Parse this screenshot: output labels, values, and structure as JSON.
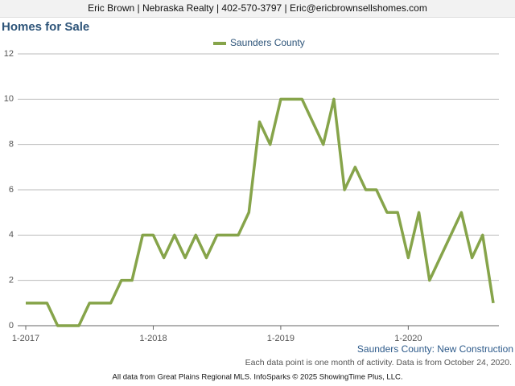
{
  "header": {
    "contact": "Eric Brown | Nebraska Realty | 402-570-3797 | Eric@ericbrownsellshomes.com"
  },
  "chart_data": {
    "type": "line",
    "title": "Homes for Sale",
    "categories": [
      "1-2017",
      null,
      null,
      null,
      null,
      null,
      null,
      null,
      null,
      null,
      null,
      null,
      "1-2018",
      null,
      null,
      null,
      null,
      null,
      null,
      null,
      null,
      null,
      null,
      null,
      "1-2019",
      null,
      null,
      null,
      null,
      null,
      null,
      null,
      null,
      null,
      null,
      null,
      "1-2020",
      null,
      null,
      null,
      null,
      null,
      null,
      null,
      null
    ],
    "series": [
      {
        "name": "Saunders County",
        "color": "#86a44a",
        "values": [
          1,
          1,
          1,
          0,
          0,
          0,
          1,
          1,
          1,
          2,
          2,
          4,
          4,
          3,
          4,
          3,
          4,
          3,
          4,
          4,
          4,
          5,
          9,
          8,
          10,
          10,
          10,
          9,
          8,
          10,
          6,
          7,
          6,
          6,
          5,
          5,
          3,
          5,
          2,
          3,
          4,
          5,
          3,
          4,
          1
        ]
      }
    ],
    "ylim": [
      0,
      12
    ],
    "yticks": [
      0,
      2,
      4,
      6,
      8,
      10,
      12
    ],
    "grid": true,
    "subtitle": "Saunders County: New Construction",
    "note": "Each data point is one month of activity. Data is from October 24, 2020.",
    "source": "All data from Great Plains Regional MLS. InfoSparks © 2025 ShowingTime Plus, LLC."
  }
}
